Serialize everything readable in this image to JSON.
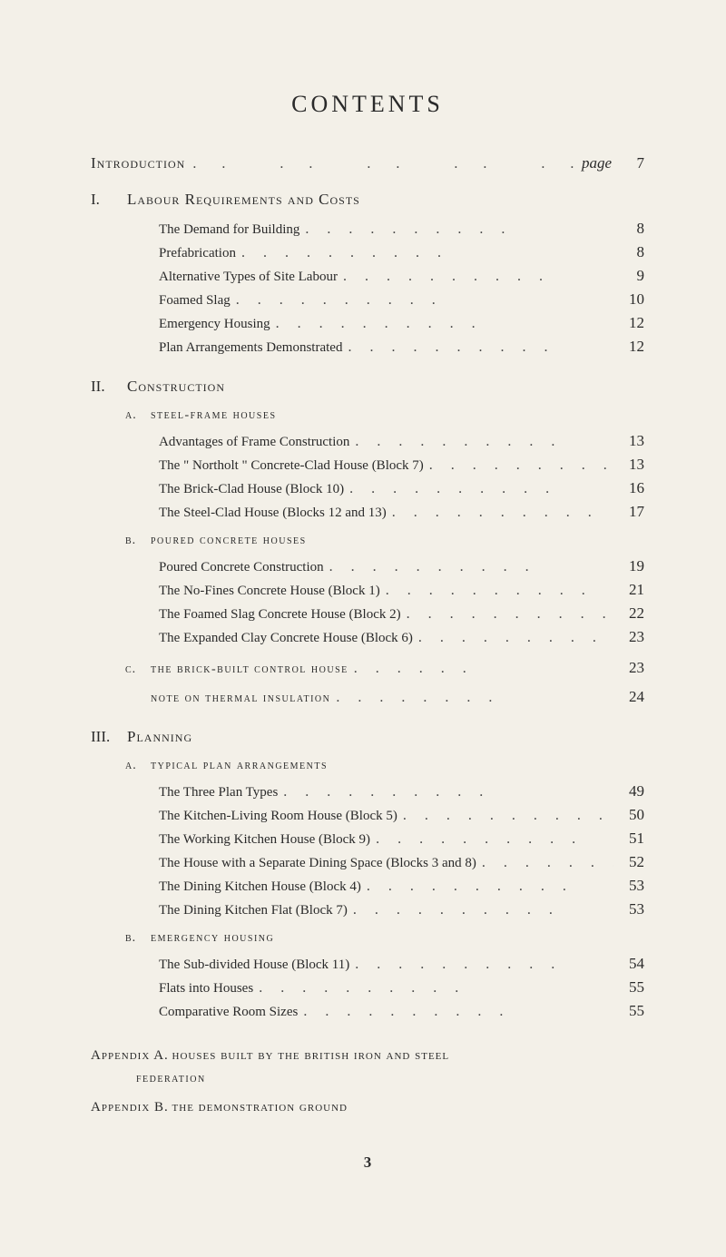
{
  "title": "CONTENTS",
  "intro": {
    "label": "Introduction",
    "page_word": "page",
    "page": "7"
  },
  "sections": [
    {
      "roman": "I.",
      "title": "Labour Requirements and Costs",
      "entries": [
        {
          "label": "The Demand for Building",
          "page": "8"
        },
        {
          "label": "Prefabrication",
          "page": "8"
        },
        {
          "label": "Alternative Types of Site Labour",
          "page": "9"
        },
        {
          "label": "Foamed Slag",
          "page": "10"
        },
        {
          "label": "Emergency Housing",
          "page": "12"
        },
        {
          "label": "Plan Arrangements Demonstrated",
          "page": "12"
        }
      ]
    },
    {
      "roman": "II.",
      "title": "Construction",
      "subsections": [
        {
          "letter": "a.",
          "title": "steel-frame houses",
          "entries": [
            {
              "label": "Advantages of Frame Construction",
              "page": "13"
            },
            {
              "label": "The \" Northolt \" Concrete-Clad House (Block 7)",
              "page": "13"
            },
            {
              "label": "The Brick-Clad House (Block 10)",
              "page": "16"
            },
            {
              "label": "The Steel-Clad House (Blocks 12 and 13)",
              "page": "17"
            }
          ]
        },
        {
          "letter": "b.",
          "title": "poured concrete houses",
          "entries": [
            {
              "label": "Poured Concrete Construction",
              "page": "19"
            },
            {
              "label": "The No-Fines Concrete House (Block 1)",
              "page": "21"
            },
            {
              "label": "The Foamed Slag Concrete House (Block 2)",
              "page": "22"
            },
            {
              "label": "The Expanded Clay Concrete House (Block 6)",
              "page": "23"
            }
          ]
        },
        {
          "letter": "c.",
          "title": "the brick-built control house",
          "page": "23",
          "note": {
            "label": "note on thermal insulation",
            "page": "24"
          }
        }
      ]
    },
    {
      "roman": "III.",
      "title": "Planning",
      "subsections": [
        {
          "letter": "a.",
          "title": "typical plan arrangements",
          "entries": [
            {
              "label": "The Three Plan Types",
              "page": "49"
            },
            {
              "label": "The Kitchen-Living Room House (Block 5)",
              "page": "50"
            },
            {
              "label": "The Working Kitchen House (Block 9)",
              "page": "51"
            },
            {
              "label": "The House with a Separate Dining Space (Blocks 3 and 8)",
              "page": "52"
            },
            {
              "label": "The Dining Kitchen House (Block 4)",
              "page": "53"
            },
            {
              "label": "The Dining Kitchen Flat (Block 7)",
              "page": "53"
            }
          ]
        },
        {
          "letter": "b.",
          "title": "emergency housing",
          "entries": [
            {
              "label": "The Sub-divided House (Block 11)",
              "page": "54"
            },
            {
              "label": "Flats into Houses",
              "page": "55"
            },
            {
              "label": "Comparative Room Sizes",
              "page": "55"
            }
          ]
        }
      ]
    }
  ],
  "appendices": [
    {
      "label": "Appendix A.",
      "title": "houses built by the british iron and steel",
      "sub": "federation"
    },
    {
      "label": "Appendix B.",
      "title": "the demonstration ground"
    }
  ],
  "footer_page": "3",
  "colors": {
    "background": "#f3f0e8",
    "text": "#2a2a2a"
  },
  "typography": {
    "title_fontsize": 26,
    "section_fontsize": 17,
    "entry_fontsize": 15,
    "sub_fontsize": 14
  }
}
